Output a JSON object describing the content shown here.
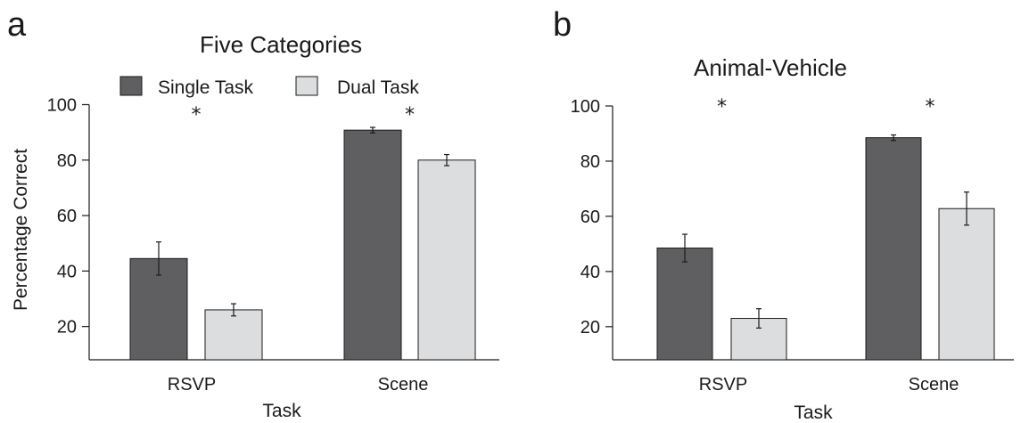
{
  "colors": {
    "single": "#5f5f61",
    "dual": "#dcdddf",
    "ink": "#1a1a1a"
  },
  "legend": {
    "items": [
      {
        "label": "Single Task"
      },
      {
        "label": "Dual Task"
      }
    ]
  },
  "chart_data": [
    {
      "panel": "a",
      "type": "bar",
      "title": "Five Categories",
      "xlabel": "Task",
      "ylabel": "Percentage Correct",
      "ylim": [
        8,
        100
      ],
      "yticks": [
        20,
        40,
        60,
        80,
        100
      ],
      "categories": [
        "RSVP",
        "Scene"
      ],
      "series": [
        {
          "name": "Single Task",
          "values": [
            44.5,
            90.8
          ],
          "errors": [
            6,
            1
          ]
        },
        {
          "name": "Dual Task",
          "values": [
            26,
            80
          ],
          "errors": [
            2.2,
            2
          ]
        }
      ],
      "significance": [
        "*",
        "*"
      ],
      "legend_position": "top-center",
      "grid": false
    },
    {
      "panel": "b",
      "type": "bar",
      "title": "Animal-Vehicle",
      "xlabel": "Task",
      "ylabel": "",
      "ylim": [
        8,
        100
      ],
      "yticks": [
        20,
        40,
        60,
        80,
        100
      ],
      "categories": [
        "RSVP",
        "Scene"
      ],
      "series": [
        {
          "name": "Single Task",
          "values": [
            48.5,
            88.5
          ],
          "errors": [
            5,
            1
          ]
        },
        {
          "name": "Dual Task",
          "values": [
            23,
            62.8
          ],
          "errors": [
            3.5,
            6
          ]
        }
      ],
      "significance": [
        "*",
        "*"
      ],
      "grid": false
    }
  ]
}
